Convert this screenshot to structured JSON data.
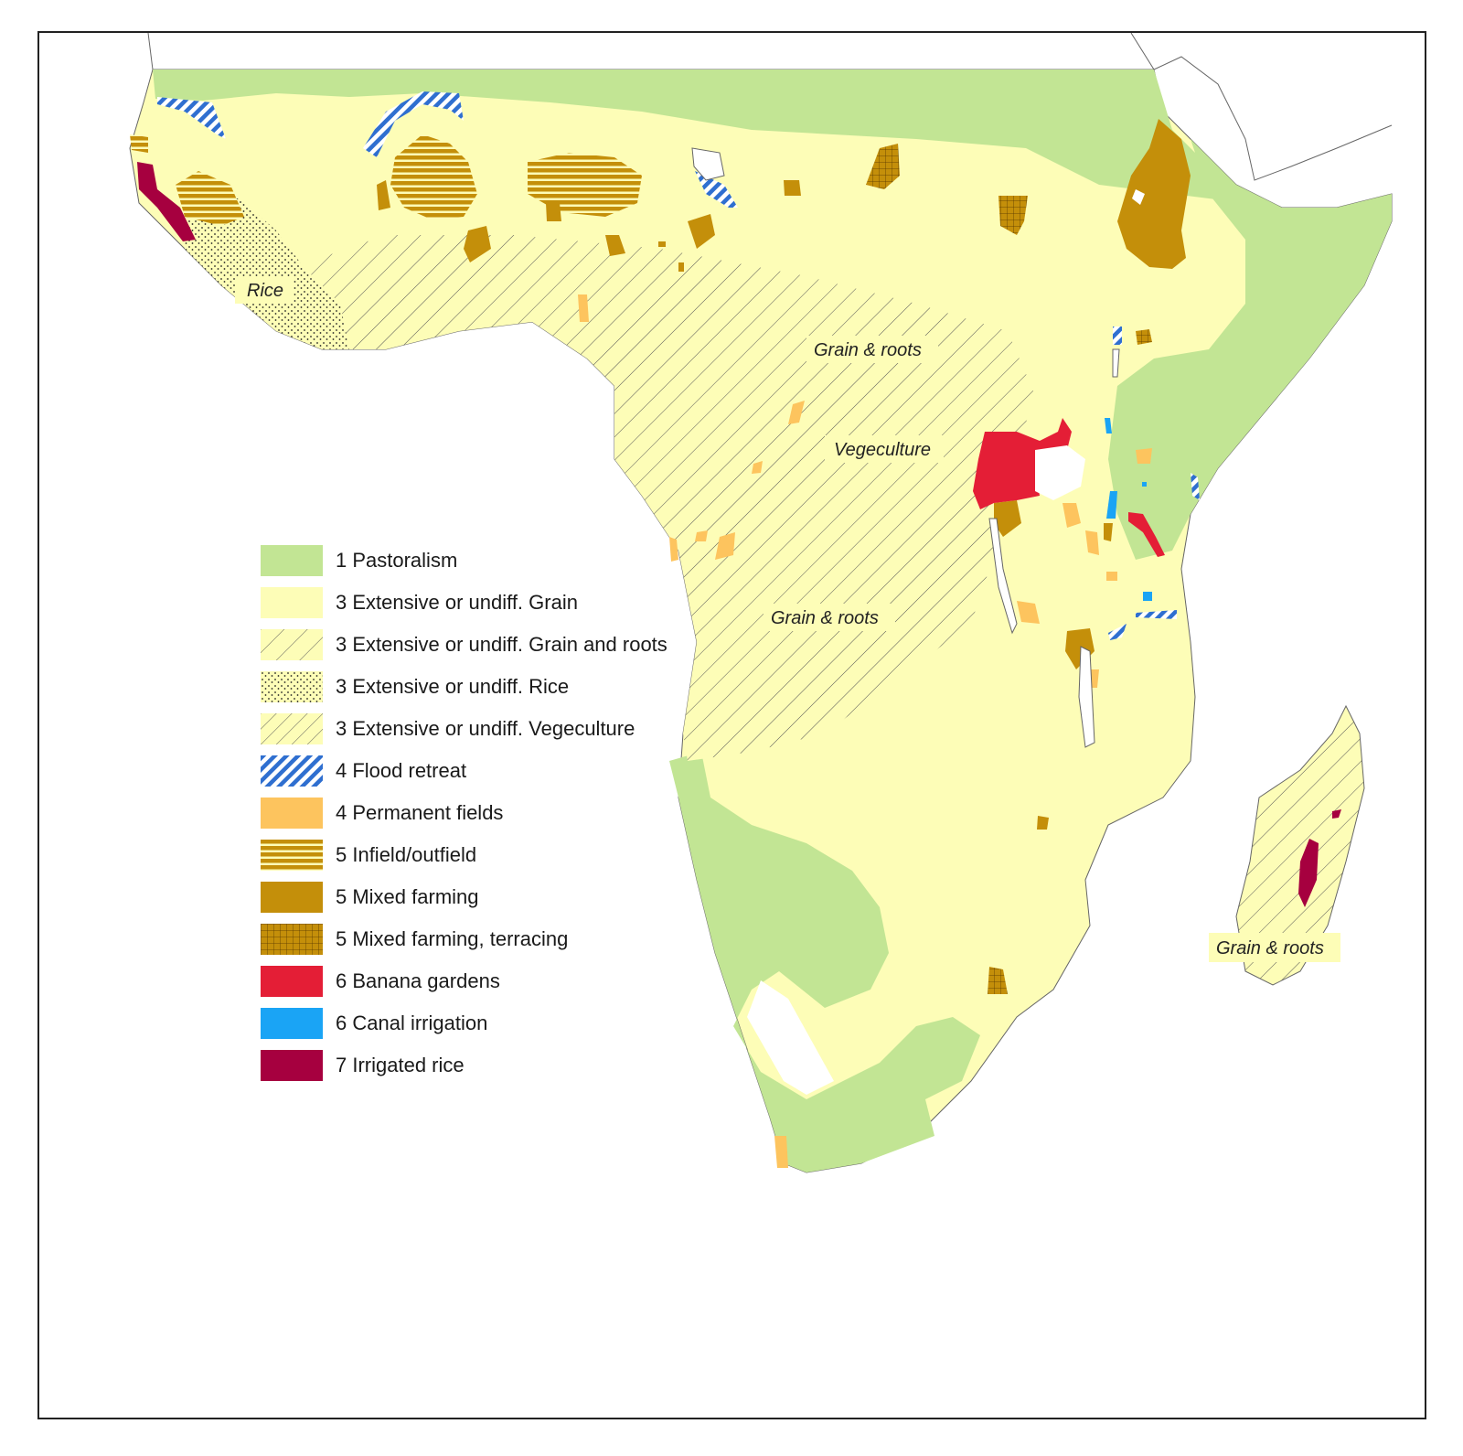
{
  "map": {
    "region_labels": {
      "rice": "Rice",
      "grain_roots_north": "Grain & roots",
      "vegeculture": "Vegeculture",
      "grain_roots_central": "Grain & roots",
      "grain_roots_madagascar": "Grain & roots"
    }
  },
  "legend": {
    "items": [
      {
        "label": "1 Pastoralism",
        "color": "#c2e594",
        "pattern": "solid"
      },
      {
        "label": "3 Extensive or undiff. Grain",
        "color": "#fdfdb7",
        "pattern": "solid"
      },
      {
        "label": "3 Extensive or undiff. Grain and roots",
        "color": "#fdfdb7",
        "pattern": "diagonal-lines"
      },
      {
        "label": "3 Extensive or undiff. Rice",
        "color": "#fdfdb7",
        "pattern": "dots"
      },
      {
        "label": "3 Extensive or undiff. Vegeculture",
        "color": "#fdfdb7",
        "pattern": "diagonal-lines-dense"
      },
      {
        "label": "4 Flood retreat",
        "color": "#2f6fd0",
        "pattern": "diagonal-hatch"
      },
      {
        "label": "4 Permanent fields",
        "color": "#fdc45e",
        "pattern": "solid"
      },
      {
        "label": "5 Infield/outfield",
        "color": "#c48f0a",
        "pattern": "horizontal-stripes"
      },
      {
        "label": "5 Mixed farming",
        "color": "#c48f0a",
        "pattern": "solid"
      },
      {
        "label": "5 Mixed farming, terracing",
        "color": "#c48f0a",
        "pattern": "grid"
      },
      {
        "label": "6 Banana gardens",
        "color": "#e41e36",
        "pattern": "solid"
      },
      {
        "label": "6 Canal irrigation",
        "color": "#1aa4f5",
        "pattern": "solid"
      },
      {
        "label": "7 Irrigated rice",
        "color": "#a6003f",
        "pattern": "solid"
      }
    ]
  }
}
